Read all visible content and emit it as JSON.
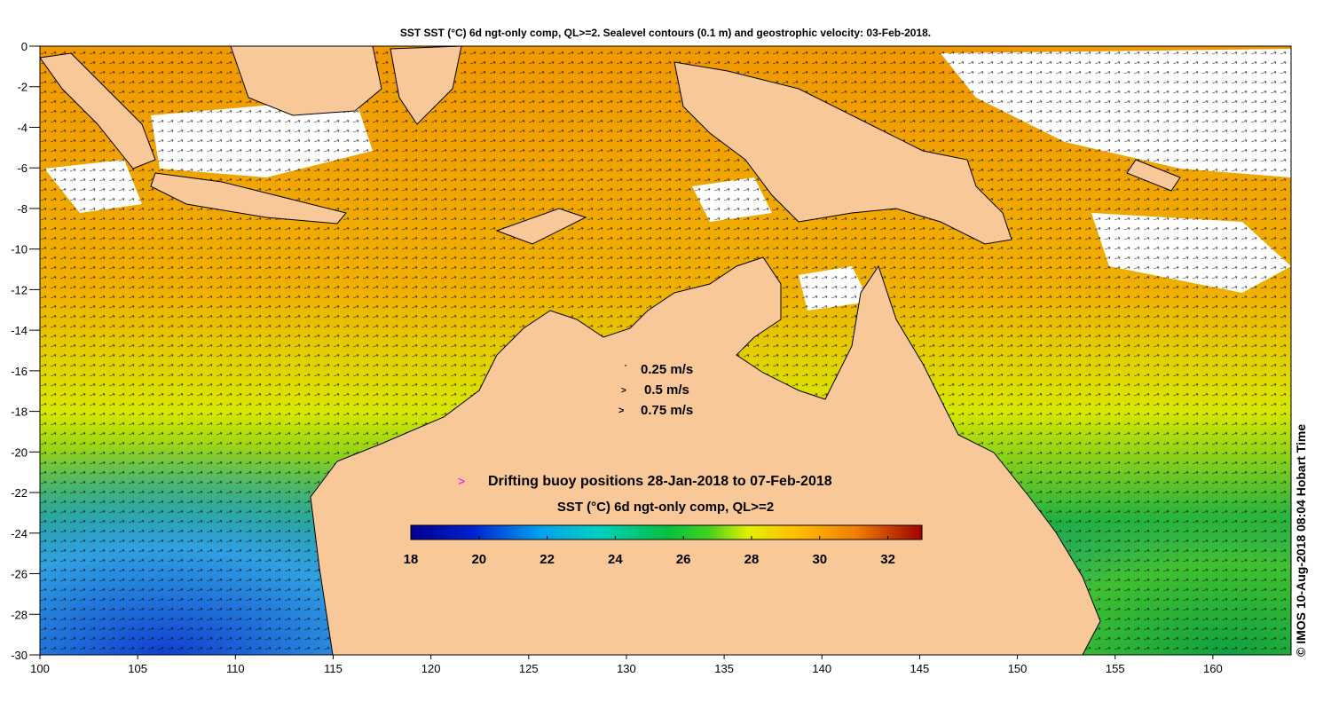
{
  "title": "SST SST (°C) 6d ngt-only comp, QL>=2. Sealevel contours (0.1 m) and geostrophic velocity: 03-Feb-2018.",
  "credit": "© IMOS 10-Aug-2018 08:04 Hobart Time",
  "velocity_legend": {
    "items": [
      {
        "label": "0.25 m/s",
        "glyph": "˙"
      },
      {
        "label": "0.5 m/s",
        "glyph": ">"
      },
      {
        "label": "0.75 m/s",
        "glyph": ">"
      }
    ]
  },
  "buoy_legend": {
    "symbol": ">",
    "label": "Drifting buoy positions 28-Jan-2018 to 07-Feb-2018",
    "symbol_color": "#ff00ff"
  },
  "colorbar": {
    "title": "SST (°C) 6d ngt-only comp, QL>=2",
    "min": 18,
    "max": 33,
    "ticks": [
      "18",
      "20",
      "22",
      "24",
      "26",
      "28",
      "30",
      "32"
    ]
  },
  "axes": {
    "x_ticks": [
      "100",
      "105",
      "110",
      "115",
      "120",
      "125",
      "130",
      "135",
      "140",
      "145",
      "150",
      "155",
      "160"
    ],
    "y_ticks": [
      "0",
      "-2",
      "-4",
      "-6",
      "-8",
      "-10",
      "-12",
      "-14",
      "-16",
      "-18",
      "-20",
      "-22",
      "-24",
      "-26",
      "-28",
      "-30"
    ],
    "lon_range": [
      100,
      164
    ],
    "lat_range": [
      -30,
      0
    ]
  },
  "colors": {
    "land": "#f8c898",
    "no_data": "#ffffff",
    "coast": "#000000"
  }
}
